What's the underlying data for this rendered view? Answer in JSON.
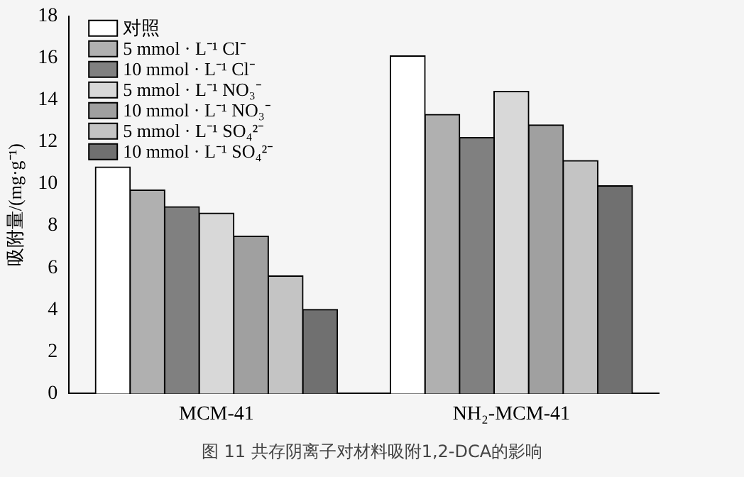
{
  "chart_data": {
    "type": "bar",
    "ylabel": "吸附量/(mg·g⁻¹)",
    "categories": [
      "MCM-41",
      "NH₂-MCM-41"
    ],
    "series": [
      {
        "name": "对照",
        "color": "#ffffff",
        "values": [
          10.8,
          16.1
        ]
      },
      {
        "name": "5 mmol · L⁻¹ Cl⁻",
        "color": "#b0b0b0",
        "values": [
          9.7,
          13.3
        ]
      },
      {
        "name": "10 mmol · L⁻¹ Cl⁻",
        "color": "#808080",
        "values": [
          8.9,
          12.2
        ]
      },
      {
        "name": "5 mmol · L⁻¹ NO₃⁻",
        "color": "#d8d8d8",
        "values": [
          8.6,
          14.4
        ]
      },
      {
        "name": "10 mmol · L⁻¹ NO₃⁻",
        "color": "#a0a0a0",
        "values": [
          7.5,
          12.8
        ]
      },
      {
        "name": "5 mmol · L⁻¹ SO₄²⁻",
        "color": "#c4c4c4",
        "values": [
          5.6,
          11.1
        ]
      },
      {
        "name": "10 mmol · L⁻¹ SO₄²⁻",
        "color": "#707070",
        "values": [
          4,
          9.9
        ]
      }
    ],
    "ylim": [
      0,
      18
    ],
    "yticks": [
      0,
      2,
      4,
      6,
      8,
      10,
      12,
      14,
      16,
      18
    ],
    "grid": false,
    "legend": "top left",
    "annotations": [
      "图 11  共存阴离子对材料吸附1,2-DCA的影响"
    ]
  }
}
